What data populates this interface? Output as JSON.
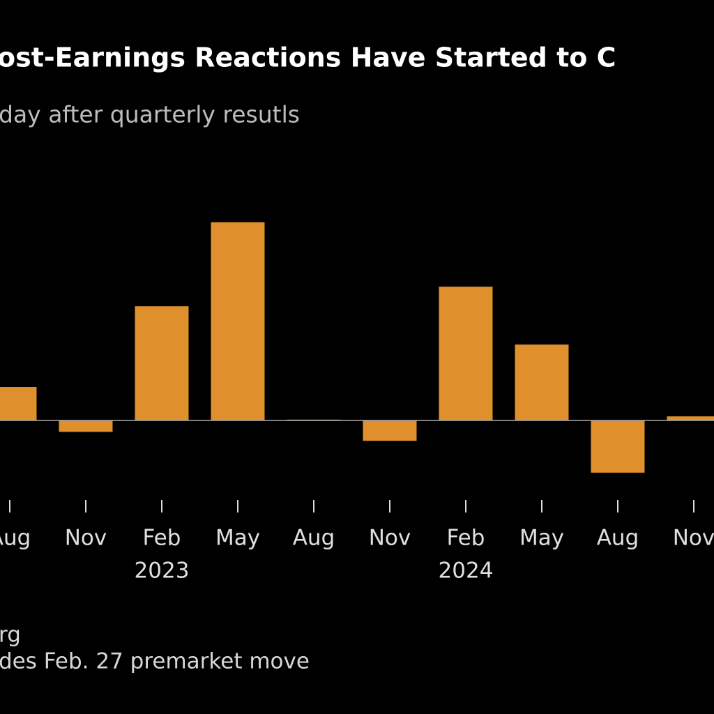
{
  "chart_data": {
    "type": "bar",
    "title": "ost-Earnings Reactions Have Started to C",
    "subtitle": "day after quarterly resutls",
    "categories": [
      "Aug",
      "Nov",
      "Feb",
      "May",
      "Aug",
      "Nov",
      "Feb",
      "May",
      "Aug",
      "Nov"
    ],
    "years": [
      null,
      null,
      "2023",
      null,
      null,
      null,
      "2024",
      null,
      null,
      null
    ],
    "values": [
      4.1,
      -1.4,
      14,
      24.3,
      0.1,
      -2.5,
      16.4,
      9.3,
      -6.4,
      0.5
    ],
    "color": "#df8f2c",
    "source": "rg",
    "note": "des Feb. 27 premarket move"
  }
}
